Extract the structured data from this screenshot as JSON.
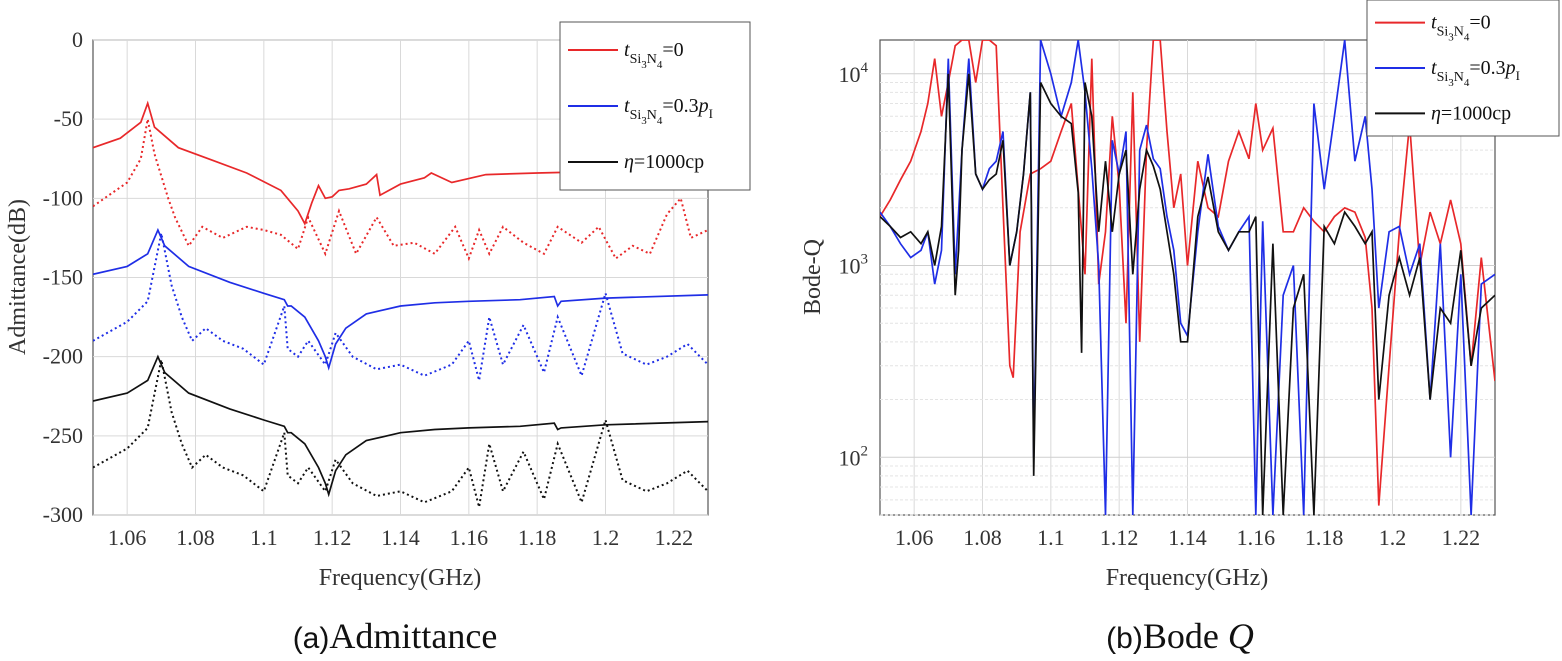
{
  "chart_data": [
    {
      "type": "line",
      "caption_prefix": "(a)",
      "caption_text": "Admittance",
      "xlabel": "Frequency(GHz)",
      "ylabel": "Admittance(dB)",
      "xlim": [
        1.05,
        1.23
      ],
      "ylim": [
        -300,
        0
      ],
      "xticks": [
        1.06,
        1.08,
        1.1,
        1.12,
        1.14,
        1.16,
        1.18,
        1.2,
        1.22
      ],
      "xtick_labels": [
        "1.06",
        "1.08",
        "1.1",
        "1.12",
        "1.14",
        "1.16",
        "1.18",
        "1.2",
        "1.22"
      ],
      "yticks": [
        0,
        -50,
        -100,
        -150,
        -200,
        -250,
        -300
      ],
      "ytick_labels": [
        "0",
        "-50",
        "-100",
        "-150",
        "-200",
        "-250",
        "-300"
      ],
      "grid": true,
      "legend_position": "top-right",
      "legend": [
        {
          "pre": "t",
          "sub": "Si",
          "sub2": "3",
          "mid": "N",
          "sub3": "4",
          "post": "=0",
          "color": "#e8282a",
          "style": "solid"
        },
        {
          "pre": "t",
          "sub": "Si",
          "sub2": "3",
          "mid": "N",
          "sub3": "4",
          "post": "=0.3",
          "ital": "p",
          "sub4": "I",
          "color": "#1f2ee6",
          "style": "solid"
        },
        {
          "pre": "η",
          "post": "=1000cp",
          "color": "#111111",
          "style": "solid"
        }
      ],
      "series": [
        {
          "color": "#e8282a",
          "style": "solid",
          "x": [
            1.05,
            1.058,
            1.064,
            1.066,
            1.068,
            1.075,
            1.085,
            1.095,
            1.105,
            1.11,
            1.112,
            1.114,
            1.116,
            1.118,
            1.12,
            1.122,
            1.125,
            1.13,
            1.133,
            1.134,
            1.14,
            1.147,
            1.149,
            1.155,
            1.165,
            1.18,
            1.2,
            1.23
          ],
          "y": [
            -68,
            -62,
            -52,
            -40,
            -55,
            -68,
            -76,
            -84,
            -95,
            -108,
            -116,
            -103,
            -92,
            -100,
            -99,
            -95,
            -94,
            -91,
            -85,
            -98,
            -91,
            -87,
            -84,
            -90,
            -85,
            -84,
            -83,
            -82
          ]
        },
        {
          "color": "#e8282a",
          "style": "dotted",
          "x": [
            1.05,
            1.06,
            1.064,
            1.066,
            1.068,
            1.072,
            1.074,
            1.078,
            1.082,
            1.088,
            1.095,
            1.1,
            1.105,
            1.11,
            1.113,
            1.118,
            1.122,
            1.127,
            1.133,
            1.138,
            1.144,
            1.15,
            1.156,
            1.16,
            1.163,
            1.166,
            1.17,
            1.176,
            1.182,
            1.186,
            1.193,
            1.198,
            1.203,
            1.208,
            1.213,
            1.218,
            1.222,
            1.225,
            1.23
          ],
          "y": [
            -105,
            -90,
            -75,
            -50,
            -72,
            -100,
            -112,
            -130,
            -118,
            -125,
            -118,
            -120,
            -123,
            -132,
            -112,
            -135,
            -108,
            -135,
            -112,
            -130,
            -128,
            -135,
            -118,
            -138,
            -120,
            -135,
            -118,
            -128,
            -135,
            -118,
            -128,
            -118,
            -138,
            -130,
            -135,
            -110,
            -100,
            -125,
            -120
          ]
        },
        {
          "color": "#1f2ee6",
          "style": "solid",
          "x": [
            1.05,
            1.06,
            1.066,
            1.069,
            1.071,
            1.078,
            1.09,
            1.1,
            1.106,
            1.107,
            1.108,
            1.112,
            1.116,
            1.118,
            1.119,
            1.121,
            1.124,
            1.13,
            1.14,
            1.15,
            1.16,
            1.175,
            1.185,
            1.186,
            1.187,
            1.2,
            1.23
          ],
          "y": [
            -148,
            -143,
            -135,
            -120,
            -130,
            -143,
            -153,
            -160,
            -164,
            -168,
            -168,
            -175,
            -190,
            -200,
            -207,
            -192,
            -182,
            -173,
            -168,
            -166,
            -165,
            -164,
            -162,
            -168,
            -165,
            -163,
            -161
          ]
        },
        {
          "color": "#1f2ee6",
          "style": "dotted",
          "x": [
            1.05,
            1.06,
            1.066,
            1.07,
            1.073,
            1.076,
            1.079,
            1.083,
            1.088,
            1.094,
            1.1,
            1.106,
            1.107,
            1.11,
            1.113,
            1.118,
            1.121,
            1.126,
            1.133,
            1.14,
            1.147,
            1.155,
            1.16,
            1.163,
            1.166,
            1.17,
            1.176,
            1.182,
            1.186,
            1.193,
            1.2,
            1.205,
            1.212,
            1.218,
            1.224,
            1.23
          ],
          "y": [
            -190,
            -178,
            -165,
            -122,
            -155,
            -175,
            -190,
            -182,
            -190,
            -195,
            -205,
            -168,
            -195,
            -200,
            -190,
            -205,
            -185,
            -200,
            -208,
            -205,
            -212,
            -205,
            -190,
            -215,
            -175,
            -205,
            -180,
            -210,
            -175,
            -212,
            -160,
            -198,
            -205,
            -200,
            -192,
            -205
          ]
        },
        {
          "color": "#111111",
          "style": "solid",
          "x": [
            1.05,
            1.06,
            1.066,
            1.069,
            1.071,
            1.078,
            1.09,
            1.1,
            1.106,
            1.107,
            1.108,
            1.112,
            1.116,
            1.118,
            1.119,
            1.121,
            1.124,
            1.13,
            1.14,
            1.15,
            1.16,
            1.175,
            1.185,
            1.186,
            1.187,
            1.2,
            1.23
          ],
          "y": [
            -228,
            -223,
            -215,
            -200,
            -210,
            -223,
            -233,
            -240,
            -244,
            -248,
            -248,
            -255,
            -270,
            -280,
            -287,
            -272,
            -262,
            -253,
            -248,
            -246,
            -245,
            -244,
            -242,
            -246,
            -245,
            -243,
            -241
          ]
        },
        {
          "color": "#111111",
          "style": "dotted",
          "x": [
            1.05,
            1.06,
            1.066,
            1.07,
            1.073,
            1.076,
            1.079,
            1.083,
            1.088,
            1.094,
            1.1,
            1.106,
            1.107,
            1.11,
            1.113,
            1.118,
            1.121,
            1.126,
            1.133,
            1.14,
            1.147,
            1.155,
            1.16,
            1.163,
            1.166,
            1.17,
            1.176,
            1.182,
            1.186,
            1.193,
            1.2,
            1.205,
            1.212,
            1.218,
            1.224,
            1.23
          ],
          "y": [
            -270,
            -258,
            -245,
            -202,
            -235,
            -255,
            -270,
            -262,
            -270,
            -275,
            -285,
            -248,
            -275,
            -280,
            -270,
            -285,
            -265,
            -280,
            -288,
            -285,
            -292,
            -285,
            -270,
            -295,
            -255,
            -285,
            -260,
            -290,
            -255,
            -292,
            -240,
            -278,
            -285,
            -280,
            -272,
            -285
          ]
        }
      ]
    },
    {
      "type": "line",
      "caption_prefix": "(b)",
      "caption_text": "Bode ",
      "caption_ital": "Q",
      "xlabel": "Frequency(GHz)",
      "ylabel": "Bode-Q",
      "xlim": [
        1.05,
        1.23
      ],
      "ylim": [
        50,
        15000
      ],
      "yscale": "log",
      "xticks": [
        1.06,
        1.08,
        1.1,
        1.12,
        1.14,
        1.16,
        1.18,
        1.2,
        1.22
      ],
      "xtick_labels": [
        "1.06",
        "1.08",
        "1.1",
        "1.12",
        "1.14",
        "1.16",
        "1.18",
        "1.2",
        "1.22"
      ],
      "ytick_labels": [
        {
          "value": 10000,
          "base": "10",
          "exp": "4"
        },
        {
          "value": 1000,
          "base": "10",
          "exp": "3"
        },
        {
          "value": 100,
          "base": "10",
          "exp": "2"
        }
      ],
      "grid": true,
      "legend_position": "top-right",
      "legend": [
        {
          "pre": "t",
          "sub": "Si",
          "sub2": "3",
          "mid": "N",
          "sub3": "4",
          "post": "=0",
          "color": "#e8282a",
          "style": "solid"
        },
        {
          "pre": "t",
          "sub": "Si",
          "sub2": "3",
          "mid": "N",
          "sub3": "4",
          "post": "=0.3",
          "ital": "p",
          "sub4": "I",
          "color": "#1f2ee6",
          "style": "solid"
        },
        {
          "pre": "η",
          "post": "=1000cp",
          "color": "#111111",
          "style": "solid"
        }
      ],
      "series": [
        {
          "color": "#e8282a",
          "style": "solid",
          "x": [
            1.05,
            1.053,
            1.056,
            1.059,
            1.062,
            1.064,
            1.066,
            1.068,
            1.07,
            1.072,
            1.074,
            1.076,
            1.078,
            1.08,
            1.082,
            1.084,
            1.086,
            1.088,
            1.089,
            1.091,
            1.094,
            1.097,
            1.1,
            1.103,
            1.106,
            1.108,
            1.11,
            1.112,
            1.114,
            1.116,
            1.118,
            1.12,
            1.122,
            1.124,
            1.126,
            1.128,
            1.13,
            1.132,
            1.134,
            1.136,
            1.138,
            1.14,
            1.143,
            1.146,
            1.149,
            1.152,
            1.155,
            1.158,
            1.16,
            1.162,
            1.165,
            1.168,
            1.171,
            1.174,
            1.177,
            1.18,
            1.183,
            1.186,
            1.189,
            1.192,
            1.194,
            1.196,
            1.199,
            1.202,
            1.205,
            1.208,
            1.211,
            1.214,
            1.217,
            1.22,
            1.223,
            1.226,
            1.23
          ],
          "y": [
            1800,
            2200,
            2800,
            3500,
            5000,
            7000,
            12000,
            6000,
            9000,
            14000,
            15000,
            15000,
            9000,
            15000,
            15000,
            14000,
            2000,
            300,
            260,
            1500,
            3000,
            3200,
            3500,
            5000,
            7000,
            2500,
            900,
            12000,
            800,
            1500,
            6000,
            2600,
            500,
            8000,
            400,
            4000,
            15000,
            15000,
            5000,
            2000,
            3000,
            1000,
            3500,
            2000,
            1800,
            3500,
            5000,
            3600,
            7000,
            4000,
            5200,
            1500,
            1500,
            2000,
            1700,
            1500,
            1800,
            2000,
            1900,
            1400,
            600,
            56,
            300,
            1500,
            5500,
            1000,
            1900,
            1300,
            2200,
            1300,
            300,
            1100,
            250
          ]
        },
        {
          "color": "#1f2ee6",
          "style": "solid",
          "x": [
            1.05,
            1.053,
            1.056,
            1.059,
            1.062,
            1.064,
            1.066,
            1.068,
            1.07,
            1.072,
            1.074,
            1.076,
            1.078,
            1.08,
            1.082,
            1.084,
            1.086,
            1.088,
            1.09,
            1.092,
            1.094,
            1.095,
            1.097,
            1.1,
            1.103,
            1.106,
            1.108,
            1.11,
            1.112,
            1.114,
            1.116,
            1.118,
            1.12,
            1.122,
            1.124,
            1.126,
            1.128,
            1.13,
            1.132,
            1.134,
            1.136,
            1.138,
            1.14,
            1.143,
            1.146,
            1.149,
            1.152,
            1.155,
            1.158,
            1.16,
            1.162,
            1.165,
            1.168,
            1.171,
            1.174,
            1.177,
            1.18,
            1.183,
            1.186,
            1.189,
            1.192,
            1.194,
            1.196,
            1.199,
            1.202,
            1.205,
            1.208,
            1.211,
            1.214,
            1.217,
            1.22,
            1.223,
            1.226,
            1.23
          ],
          "y": [
            1900,
            1600,
            1300,
            1100,
            1200,
            1500,
            800,
            1200,
            12000,
            900,
            4000,
            12000,
            3000,
            2500,
            3200,
            3500,
            5000,
            1000,
            1500,
            3000,
            8000,
            100,
            15000,
            10000,
            6000,
            9000,
            15000,
            8000,
            3200,
            1000,
            50,
            4500,
            3000,
            5000,
            50,
            4000,
            5400,
            3600,
            3200,
            1800,
            1200,
            500,
            430,
            1500,
            3800,
            1600,
            1200,
            1500,
            1800,
            50,
            1700,
            50,
            700,
            1000,
            50,
            7000,
            2500,
            6000,
            15000,
            3500,
            6000,
            2500,
            600,
            1500,
            1600,
            900,
            1300,
            200,
            1300,
            100,
            900,
            50,
            800,
            900
          ]
        },
        {
          "color": "#111111",
          "style": "solid",
          "x": [
            1.05,
            1.053,
            1.056,
            1.059,
            1.062,
            1.064,
            1.066,
            1.068,
            1.07,
            1.072,
            1.073,
            1.074,
            1.076,
            1.078,
            1.08,
            1.082,
            1.084,
            1.086,
            1.088,
            1.09,
            1.092,
            1.094,
            1.095,
            1.097,
            1.1,
            1.103,
            1.106,
            1.108,
            1.109,
            1.11,
            1.112,
            1.114,
            1.116,
            1.118,
            1.12,
            1.122,
            1.124,
            1.126,
            1.128,
            1.13,
            1.132,
            1.134,
            1.136,
            1.138,
            1.14,
            1.143,
            1.146,
            1.149,
            1.152,
            1.155,
            1.158,
            1.16,
            1.162,
            1.165,
            1.168,
            1.171,
            1.174,
            1.177,
            1.18,
            1.183,
            1.186,
            1.189,
            1.192,
            1.194,
            1.196,
            1.199,
            1.202,
            1.205,
            1.208,
            1.211,
            1.214,
            1.217,
            1.22,
            1.223,
            1.226,
            1.23
          ],
          "y": [
            1800,
            1600,
            1400,
            1500,
            1300,
            1500,
            1000,
            1600,
            10000,
            700,
            1200,
            4000,
            10000,
            3000,
            2500,
            2800,
            3000,
            4500,
            1000,
            1500,
            3000,
            8000,
            80,
            9000,
            7000,
            6000,
            5500,
            2400,
            350,
            9000,
            6000,
            1500,
            3500,
            1500,
            3000,
            4000,
            900,
            2500,
            4000,
            3300,
            2500,
            1500,
            900,
            400,
            400,
            1800,
            2900,
            1500,
            1200,
            1500,
            1500,
            1800,
            50,
            1300,
            50,
            600,
            900,
            50,
            1600,
            1300,
            1900,
            1600,
            1300,
            1500,
            200,
            700,
            1100,
            700,
            1100,
            200,
            600,
            500,
            1200,
            300,
            600,
            700
          ]
        }
      ]
    }
  ]
}
